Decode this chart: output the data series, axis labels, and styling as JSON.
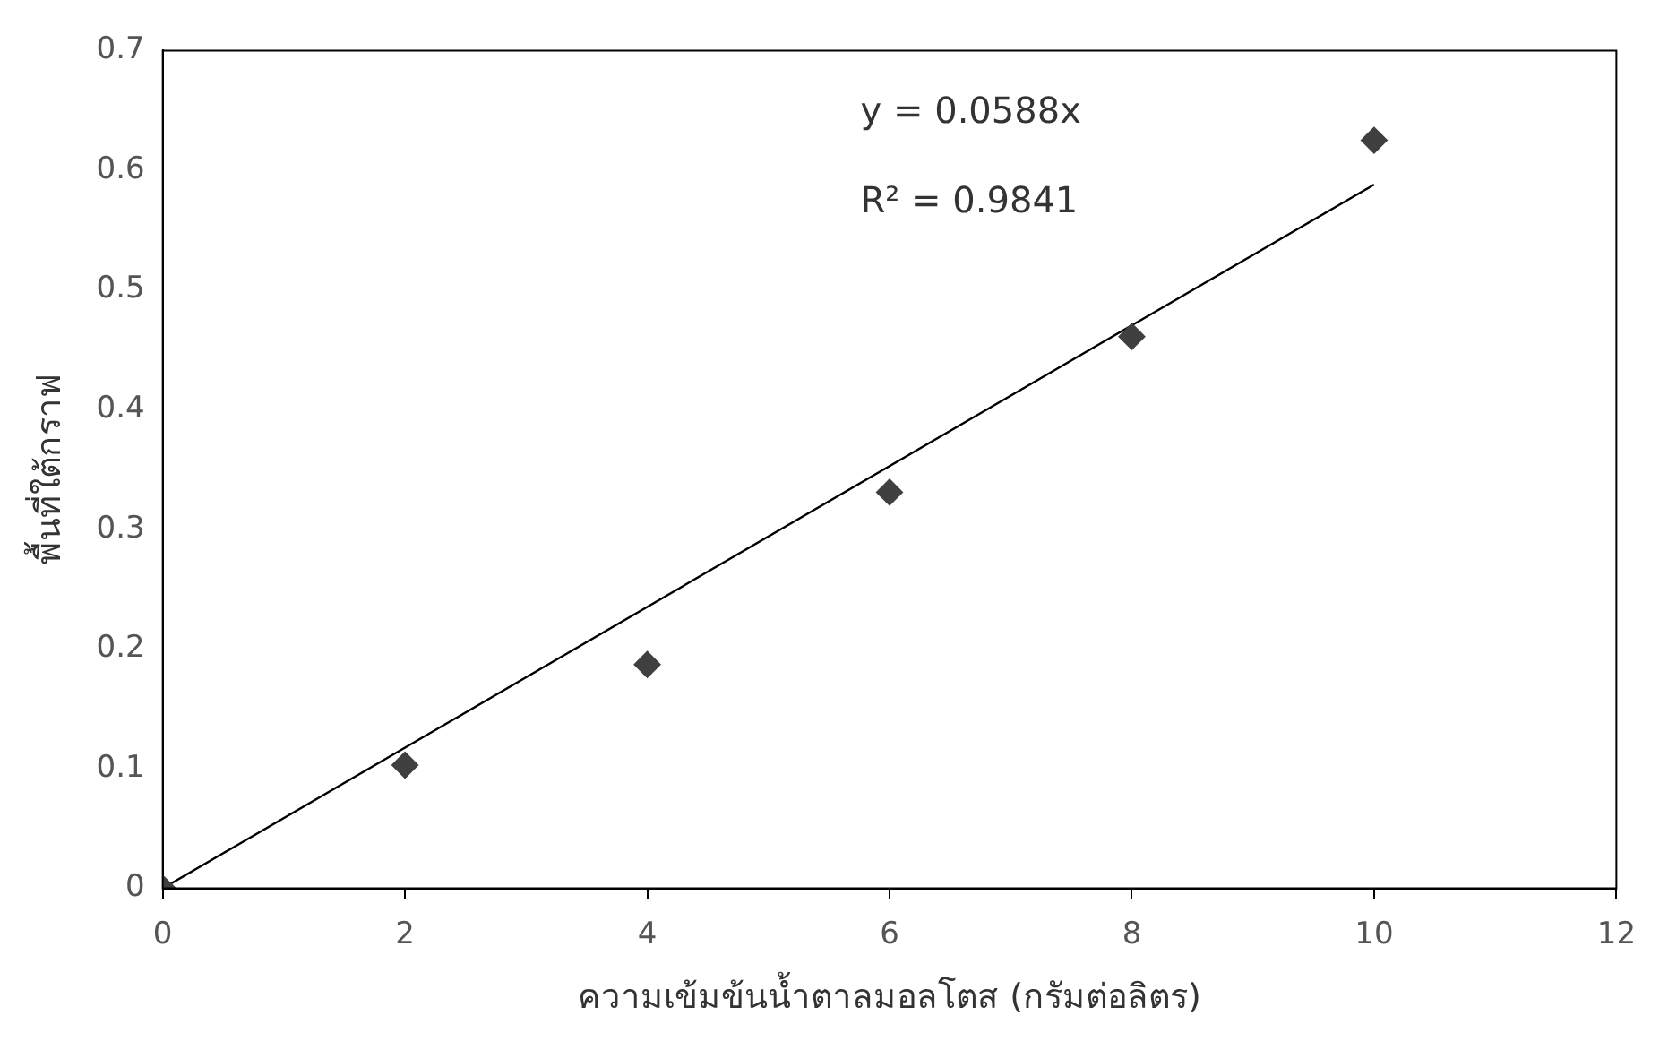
{
  "chart_data": {
    "type": "scatter",
    "xlabel": "ความเข้มข้นน้ำตาลมอลโตส (กรัมต่อลิตร)",
    "ylabel": "พื้นที่ใต้กราฟ",
    "annotations": [
      "y = 0.0588x",
      "R² = 0.9841"
    ],
    "series": [
      {
        "type": "scatter",
        "color": "#404040",
        "x": [
          0,
          2,
          4,
          6,
          8,
          10
        ],
        "values": [
          0,
          0.103,
          0.187,
          0.331,
          0.461,
          0.625
        ],
        "marker": "diamond"
      },
      {
        "type": "line",
        "color": "#000000",
        "x": [
          0,
          10
        ],
        "values": [
          0,
          0.588
        ],
        "marker": "none",
        "line_style": "solid"
      }
    ],
    "xlim": [
      0,
      12
    ],
    "xticks": [
      0,
      2,
      4,
      6,
      8,
      10,
      12
    ],
    "ylim": [
      0,
      0.7
    ],
    "yticks": [
      0,
      0.1,
      0.2,
      0.3,
      0.4,
      0.5,
      0.6,
      0.7
    ],
    "grid": false,
    "legend": false
  }
}
